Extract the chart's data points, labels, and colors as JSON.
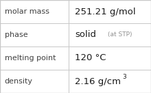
{
  "rows": [
    {
      "label": "molar mass",
      "value": "251.21 g/mol",
      "type": "plain"
    },
    {
      "label": "phase",
      "value": "solid",
      "value_suffix": "(at STP)",
      "type": "suffix"
    },
    {
      "label": "melting point",
      "value": "120 °C",
      "type": "plain"
    },
    {
      "label": "density",
      "value": "2.16 g/cm",
      "superscript": "3",
      "type": "super"
    }
  ],
  "background_color": "#ffffff",
  "border_color": "#c8c8c8",
  "label_color": "#404040",
  "value_color": "#1a1a1a",
  "suffix_color": "#909090",
  "col_split": 0.455,
  "label_fontsize": 8.0,
  "value_fontsize": 9.5,
  "suffix_fontsize": 6.5,
  "super_fontsize": 6.5
}
